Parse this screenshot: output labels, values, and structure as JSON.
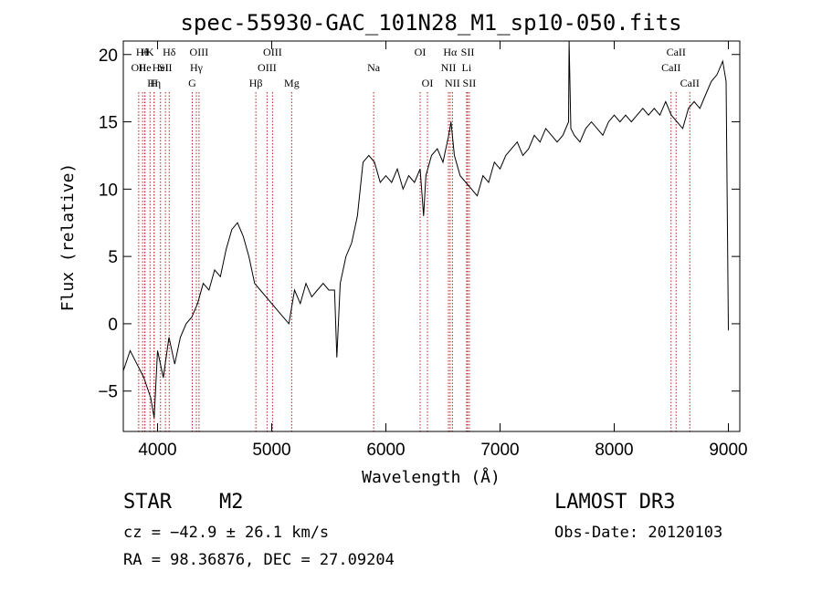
{
  "chart_data": {
    "type": "line",
    "title": "spec-55930-GAC_101N28_M1_sp10-050.fits",
    "xlabel": "Wavelength (Å)",
    "ylabel": "Flux (relative)",
    "xlim": [
      3700,
      9100
    ],
    "ylim": [
      -8,
      21
    ],
    "xticks": [
      "4000",
      "5000",
      "6000",
      "7000",
      "8000",
      "9000"
    ],
    "xtick_values": [
      4000,
      5000,
      6000,
      7000,
      8000,
      9000
    ],
    "yticks": [
      "20",
      "15",
      "10",
      "5",
      "0",
      "−5"
    ],
    "ytick_values": [
      20,
      15,
      10,
      5,
      0,
      -5
    ],
    "series": [
      {
        "name": "flux",
        "x": [
          3700,
          3760,
          3820,
          3880,
          3940,
          3970,
          4000,
          4050,
          4100,
          4150,
          4200,
          4250,
          4300,
          4350,
          4400,
          4450,
          4500,
          4550,
          4600,
          4650,
          4700,
          4750,
          4800,
          4850,
          4900,
          4950,
          5000,
          5050,
          5100,
          5150,
          5200,
          5250,
          5300,
          5350,
          5400,
          5450,
          5500,
          5550,
          5570,
          5600,
          5650,
          5700,
          5750,
          5800,
          5850,
          5900,
          5950,
          6000,
          6050,
          6100,
          6150,
          6200,
          6250,
          6300,
          6330,
          6350,
          6400,
          6450,
          6500,
          6550,
          6570,
          6600,
          6650,
          6700,
          6750,
          6800,
          6850,
          6900,
          6950,
          7000,
          7050,
          7100,
          7150,
          7200,
          7250,
          7300,
          7350,
          7400,
          7450,
          7500,
          7550,
          7600,
          7605,
          7620,
          7650,
          7700,
          7750,
          7800,
          7850,
          7900,
          7950,
          8000,
          8050,
          8100,
          8150,
          8200,
          8250,
          8300,
          8350,
          8400,
          8450,
          8500,
          8550,
          8600,
          8650,
          8700,
          8750,
          8800,
          8850,
          8900,
          8950,
          8980,
          9000
        ],
        "values": [
          -3.5,
          -2,
          -3,
          -4,
          -5.5,
          -7,
          -2,
          -4,
          -1,
          -3,
          -1,
          0,
          0.5,
          1.5,
          3,
          2.5,
          4,
          3.5,
          5.5,
          7,
          7.5,
          6.5,
          5,
          3,
          2.5,
          2,
          1.5,
          1,
          0.5,
          0,
          2.5,
          1.5,
          3,
          2,
          2.5,
          3,
          2.5,
          2.5,
          -2.5,
          3,
          5,
          6,
          8,
          12,
          12.5,
          12,
          10.5,
          11,
          10.5,
          11.5,
          10,
          11,
          10.5,
          11.5,
          8,
          11,
          12.5,
          13,
          12,
          14,
          15,
          12.5,
          11,
          10.5,
          10,
          9.5,
          11,
          10.5,
          12,
          11.5,
          12.5,
          13,
          13.5,
          12.5,
          13,
          14,
          13.5,
          14.5,
          14,
          13.5,
          14,
          15,
          21,
          14.5,
          14,
          13.5,
          14.5,
          15,
          14.5,
          14,
          15,
          15.5,
          15,
          15.5,
          15,
          15.5,
          16,
          15.5,
          16,
          15.5,
          16.5,
          15.5,
          15,
          14.5,
          16,
          16.5,
          16,
          17,
          18,
          18.5,
          19.5,
          18,
          -0.5
        ]
      }
    ],
    "line_markers": [
      {
        "w": 3835,
        "label": "OII",
        "row": 2
      },
      {
        "w": 3869,
        "label": "Hθ",
        "row": 1
      },
      {
        "w": 3889,
        "label": "He",
        "row": 2
      },
      {
        "w": 3889,
        "label": "H",
        "row": 1
      },
      {
        "w": 3934,
        "label": "K",
        "row": 1
      },
      {
        "w": 3970,
        "label": "Hη",
        "row": 3
      },
      {
        "w": 3970,
        "label": "H",
        "row": 3
      },
      {
        "w": 4026,
        "label": "HeI",
        "row": 2
      },
      {
        "w": 4069,
        "label": "SII",
        "row": 2
      },
      {
        "w": 4102,
        "label": "Hδ",
        "row": 1
      },
      {
        "w": 4304,
        "label": "G",
        "row": 3
      },
      {
        "w": 4340,
        "label": "Hγ",
        "row": 2
      },
      {
        "w": 4363,
        "label": "OIII",
        "row": 1
      },
      {
        "w": 4861,
        "label": "Hβ",
        "row": 3
      },
      {
        "w": 4959,
        "label": "OIII",
        "row": 2
      },
      {
        "w": 5007,
        "label": "OIII",
        "row": 1
      },
      {
        "w": 5175,
        "label": "Mg",
        "row": 3
      },
      {
        "w": 5893,
        "label": "Na",
        "row": 2
      },
      {
        "w": 6300,
        "label": "OI",
        "row": 1
      },
      {
        "w": 6364,
        "label": "OI",
        "row": 3
      },
      {
        "w": 6548,
        "label": "NII",
        "row": 2
      },
      {
        "w": 6563,
        "label": "Hα",
        "row": 1
      },
      {
        "w": 6583,
        "label": "NII",
        "row": 3
      },
      {
        "w": 6707,
        "label": "Li",
        "row": 2
      },
      {
        "w": 6716,
        "label": "SII",
        "row": 1
      },
      {
        "w": 6731,
        "label": "SII",
        "row": 3
      },
      {
        "w": 8498,
        "label": "CaII",
        "row": 2
      },
      {
        "w": 8542,
        "label": "CaII",
        "row": 1
      },
      {
        "w": 8662,
        "label": "CaII",
        "row": 3
      }
    ]
  },
  "footer": {
    "object_class": "STAR",
    "subclass": "M2",
    "survey": "LAMOST DR3",
    "cz": "cz = −42.9 ± 26.1 km/s",
    "obs_date": "Obs-Date: 20120103",
    "coords": "RA =  98.36876, DEC =  27.09204"
  }
}
